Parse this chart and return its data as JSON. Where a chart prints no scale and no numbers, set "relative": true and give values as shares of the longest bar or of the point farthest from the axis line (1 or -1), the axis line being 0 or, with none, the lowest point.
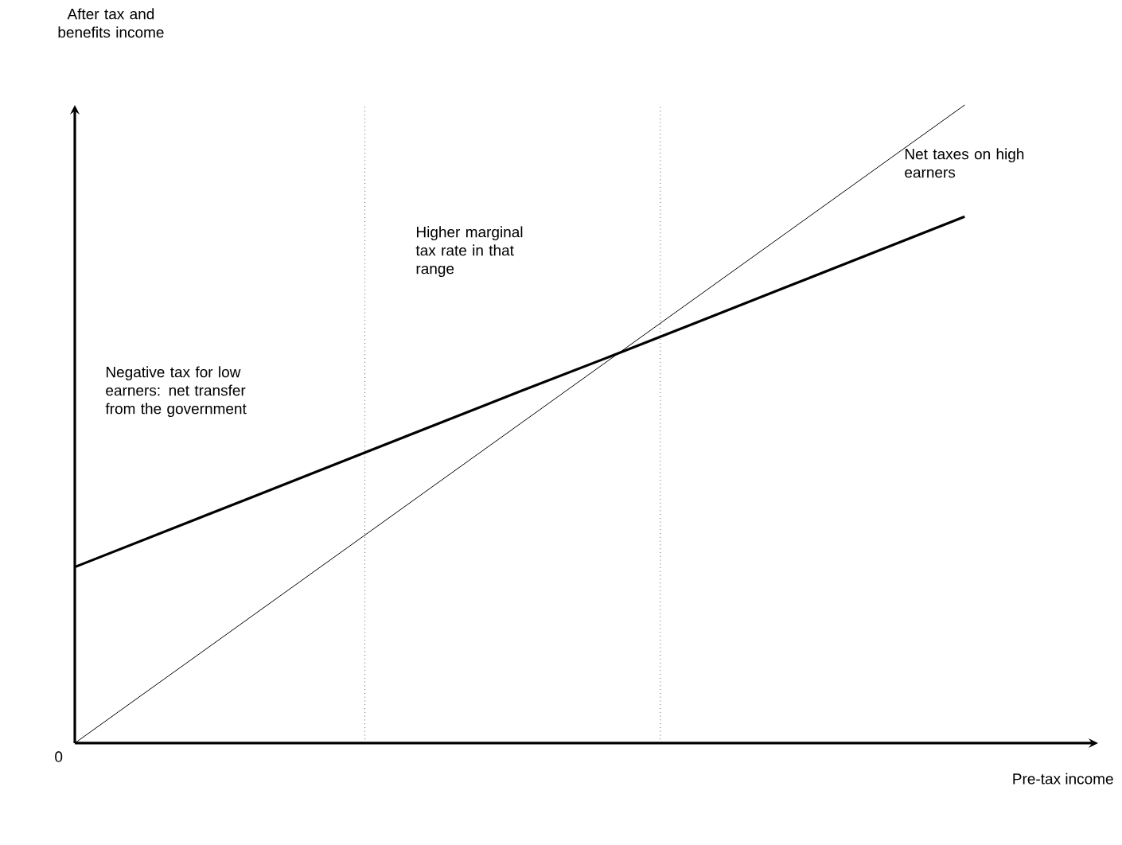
{
  "chart_data": {
    "type": "line",
    "relative": true,
    "xlabel": "Pre-tax income",
    "ylabel": "After tax and benefits income",
    "categories": [
      null,
      null,
      null,
      null,
      null,
      null,
      null,
      null,
      null,
      null,
      null
    ],
    "series": [
      {
        "values": [
          0,
          0.1,
          0.2,
          0.3,
          0.4,
          0.5,
          0.6,
          0.7,
          0.8,
          0.9,
          1
        ],
        "color": "#000000"
      },
      {
        "values": [
          0.276,
          0.331,
          0.386,
          0.441,
          0.496,
          0.551,
          0.605,
          0.66,
          0.715,
          0.77,
          0.825
        ],
        "color": "#000000"
      }
    ],
    "annotations": [
      "0",
      "Negative tax for low earners: net transfer from the government",
      "Higher marginal tax rate in that range",
      "Net taxes on high earners"
    ]
  }
}
